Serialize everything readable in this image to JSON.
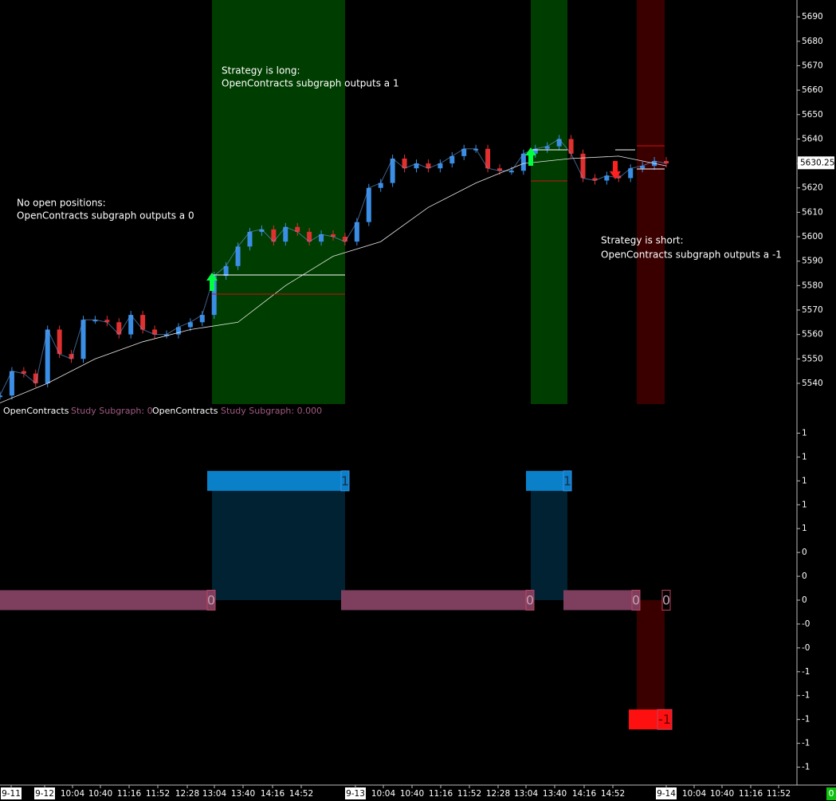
{
  "price_panel": {
    "ylim": [
      5531.5,
      5696.9
    ],
    "yticks": [
      5540,
      5550,
      5560,
      5570,
      5580,
      5590,
      5600,
      5610,
      5620,
      5630,
      5640,
      5650,
      5660,
      5670,
      5680,
      5690
    ],
    "last_price": {
      "value": 5630.25,
      "label": "5630.25"
    },
    "price": [
      5535,
      5545,
      5544,
      5540,
      5562,
      5552,
      5550,
      5566,
      5566,
      5565,
      5560,
      5568,
      5562,
      5560,
      5560,
      5563,
      5565,
      5568,
      5584,
      5588,
      5596,
      5602,
      5603,
      5598,
      5604,
      5602,
      5598,
      5601,
      5600,
      5598,
      5606,
      5620,
      5622,
      5632,
      5628,
      5630,
      5628,
      5630,
      5633,
      5636,
      5636,
      5628,
      5627,
      5627,
      5634,
      5636,
      5637,
      5640,
      5634,
      5624,
      5623,
      5625,
      5624,
      5628,
      5629,
      5631,
      5630
    ],
    "moving_average": [
      5532,
      5540,
      5550,
      5557,
      5562,
      5565,
      5580,
      5592,
      5598,
      5612,
      5622,
      5630,
      5632,
      5633,
      5629
    ],
    "annotations": [
      [
        "No open positions:",
        "OpenContracts subgraph outputs a 0"
      ],
      [
        "Strategy is long:",
        "OpenContracts subgraph outputs a 1"
      ],
      [
        "Strategy is short:",
        "OpenContracts subgraph outputs a -1"
      ]
    ]
  },
  "study_panel": {
    "legend": [
      "OpenContracts",
      "Study Subgraph: 0",
      "OpenContracts",
      "Study Subgraph: 0.000"
    ],
    "ylim": [
      -1.55,
      1.49
    ],
    "yticks": [
      {
        "value": 1.4,
        "label": "1"
      },
      {
        "value": 1.2,
        "label": "1"
      },
      {
        "value": 1,
        "label": "1"
      },
      {
        "value": 0.8,
        "label": "1"
      },
      {
        "value": 0.6,
        "label": "1"
      },
      {
        "value": 0.4,
        "label": "0"
      },
      {
        "value": 0.2,
        "label": "0"
      },
      {
        "value": 0,
        "label": "0"
      },
      {
        "value": -0.2,
        "label": "-0"
      },
      {
        "value": -0.4,
        "label": "-0"
      },
      {
        "value": -0.6,
        "label": "-1"
      },
      {
        "value": -0.8,
        "label": "-1"
      },
      {
        "value": -1,
        "label": "-1"
      },
      {
        "value": -1.2,
        "label": "-1"
      },
      {
        "value": -1.4,
        "label": "-1"
      }
    ],
    "values": [
      0,
      1,
      0,
      1,
      0,
      -1,
      0
    ]
  },
  "time_axis": {
    "labels": [
      "9-11",
      "9-12",
      "10:04",
      "10:40",
      "11:16",
      "11:52",
      "12:28",
      "13:04",
      "13:40",
      "14:16",
      "14:52",
      "9-13",
      "10:04",
      "10:40",
      "11:16",
      "11:52",
      "12:28",
      "13:04",
      "13:40",
      "14:16",
      "14:52",
      "9-14",
      "10:04",
      "10:40",
      "11:16",
      "11:52"
    ]
  },
  "status": "0"
}
